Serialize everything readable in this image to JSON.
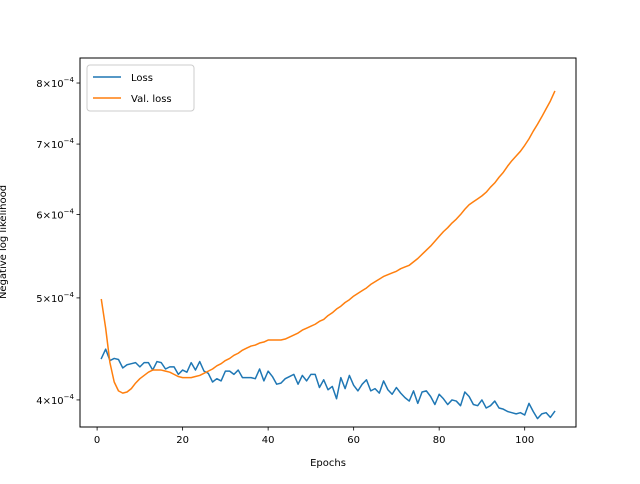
{
  "chart_data": {
    "type": "line",
    "title": "",
    "xlabel": "Epochs",
    "ylabel": "Negative log likelihood",
    "y_scale": "log",
    "xlim": [
      -4,
      112
    ],
    "ylim": [
      0.000377,
      0.000845
    ],
    "x_ticks": [
      0,
      20,
      40,
      60,
      80,
      100
    ],
    "x_tick_labels": [
      "0",
      "20",
      "40",
      "60",
      "80",
      "100"
    ],
    "y_ticks": [
      0.0004,
      0.0005,
      0.0006,
      0.0007,
      0.0008
    ],
    "y_tick_mantissas": [
      "4",
      "5",
      "6",
      "7",
      "8"
    ],
    "y_tick_times": "×10",
    "y_tick_exponent": "−4",
    "grid": false,
    "legend_position": "upper left",
    "series": [
      {
        "name": "Loss",
        "color": "#1f77b4",
        "x": [
          1,
          2,
          3,
          4,
          5,
          6,
          7,
          8,
          9,
          10,
          11,
          12,
          13,
          14,
          15,
          16,
          17,
          18,
          19,
          20,
          21,
          22,
          23,
          24,
          25,
          26,
          27,
          28,
          29,
          30,
          31,
          32,
          33,
          34,
          35,
          36,
          37,
          38,
          39,
          40,
          41,
          42,
          43,
          44,
          45,
          46,
          47,
          48,
          49,
          50,
          51,
          52,
          53,
          54,
          55,
          56,
          57,
          58,
          59,
          60,
          61,
          62,
          63,
          64,
          65,
          66,
          67,
          68,
          69,
          70,
          71,
          72,
          73,
          74,
          75,
          76,
          77,
          78,
          79,
          80,
          81,
          82,
          83,
          84,
          85,
          86,
          87,
          88,
          89,
          90,
          91,
          92,
          93,
          94,
          95,
          96,
          97,
          98,
          99,
          100,
          101,
          102,
          103,
          104,
          105,
          106,
          107
        ],
        "values": [
          0.000438,
          0.000447,
          0.000436,
          0.000438,
          0.000437,
          0.000429,
          0.000432,
          0.000433,
          0.000434,
          0.00043,
          0.000434,
          0.000434,
          0.000427,
          0.000435,
          0.000434,
          0.000428,
          0.00043,
          0.00043,
          0.000423,
          0.000427,
          0.000425,
          0.000434,
          0.000427,
          0.000435,
          0.000426,
          0.000424,
          0.000416,
          0.000419,
          0.000417,
          0.000426,
          0.000426,
          0.000423,
          0.000427,
          0.00042,
          0.00042,
          0.00042,
          0.000419,
          0.000428,
          0.000417,
          0.000426,
          0.000421,
          0.000414,
          0.000415,
          0.000419,
          0.000421,
          0.000423,
          0.000414,
          0.000422,
          0.000417,
          0.000423,
          0.000423,
          0.000411,
          0.000418,
          0.000409,
          0.000412,
          0.000401,
          0.00042,
          0.00041,
          0.000422,
          0.000413,
          0.000408,
          0.000414,
          0.000418,
          0.000408,
          0.00041,
          0.000406,
          0.000417,
          0.000409,
          0.000405,
          0.000411,
          0.000406,
          0.000402,
          0.000399,
          0.000408,
          0.000397,
          0.000407,
          0.000408,
          0.000403,
          0.000396,
          0.000405,
          0.000401,
          0.000396,
          0.0004,
          0.000399,
          0.000395,
          0.000407,
          0.000403,
          0.000396,
          0.000395,
          0.0004,
          0.000393,
          0.000395,
          0.000399,
          0.000393,
          0.000392,
          0.00039,
          0.000389,
          0.000388,
          0.000389,
          0.000387,
          0.000397,
          0.00039,
          0.000384,
          0.000388,
          0.000389,
          0.000385,
          0.00039
        ]
      },
      {
        "name": "Val. loss",
        "color": "#ff7f0e",
        "x": [
          1,
          2,
          3,
          4,
          5,
          6,
          7,
          8,
          9,
          10,
          11,
          12,
          13,
          14,
          15,
          16,
          17,
          18,
          19,
          20,
          21,
          22,
          23,
          24,
          25,
          26,
          27,
          28,
          29,
          30,
          31,
          32,
          33,
          34,
          35,
          36,
          37,
          38,
          39,
          40,
          41,
          42,
          43,
          44,
          45,
          46,
          47,
          48,
          49,
          50,
          51,
          52,
          53,
          54,
          55,
          56,
          57,
          58,
          59,
          60,
          61,
          62,
          63,
          64,
          65,
          66,
          67,
          68,
          69,
          70,
          71,
          72,
          73,
          74,
          75,
          76,
          77,
          78,
          79,
          80,
          81,
          82,
          83,
          84,
          85,
          86,
          87,
          88,
          89,
          90,
          91,
          92,
          93,
          94,
          95,
          96,
          97,
          98,
          99,
          100,
          101,
          102,
          103,
          104,
          105,
          106,
          107
        ],
        "values": [
          0.000498,
          0.000468,
          0.000434,
          0.000416,
          0.000408,
          0.000406,
          0.000407,
          0.00041,
          0.000415,
          0.000419,
          0.000422,
          0.000425,
          0.000427,
          0.000427,
          0.000427,
          0.000426,
          0.000425,
          0.000423,
          0.000421,
          0.00042,
          0.00042,
          0.00042,
          0.000421,
          0.000422,
          0.000424,
          0.000426,
          0.000428,
          0.000431,
          0.000433,
          0.000436,
          0.000438,
          0.000441,
          0.000443,
          0.000446,
          0.000448,
          0.00045,
          0.000451,
          0.000453,
          0.000454,
          0.000456,
          0.000456,
          0.000456,
          0.000456,
          0.000457,
          0.000459,
          0.000461,
          0.000463,
          0.000466,
          0.000468,
          0.00047,
          0.000472,
          0.000475,
          0.000477,
          0.000481,
          0.000484,
          0.000488,
          0.000491,
          0.000495,
          0.000498,
          0.000502,
          0.000505,
          0.000508,
          0.000511,
          0.000515,
          0.000518,
          0.000521,
          0.000524,
          0.000526,
          0.000528,
          0.00053,
          0.000533,
          0.000535,
          0.000537,
          0.000541,
          0.000545,
          0.00055,
          0.000555,
          0.00056,
          0.000566,
          0.000572,
          0.000578,
          0.000583,
          0.000589,
          0.000594,
          0.0006,
          0.000607,
          0.000613,
          0.000617,
          0.000621,
          0.000625,
          0.00063,
          0.000637,
          0.000643,
          0.000651,
          0.000658,
          0.000667,
          0.000675,
          0.000682,
          0.000689,
          0.000698,
          0.000708,
          0.00072,
          0.000731,
          0.000743,
          0.000756,
          0.000769,
          0.000785
        ]
      }
    ]
  }
}
